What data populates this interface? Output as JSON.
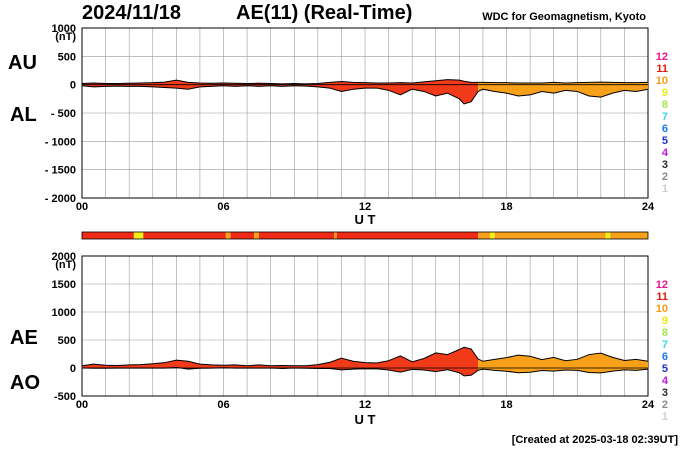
{
  "header": {
    "date": "2024/11/18",
    "title": "AE(11) (Real-Time)",
    "org": "WDC for Geomagnetism, Kyoto"
  },
  "footer": {
    "created": "[Created at 2025-03-18 02:39UT]"
  },
  "side_labels": {
    "au": "AU",
    "al": "AL",
    "ae": "AE",
    "ao": "AO"
  },
  "colors": {
    "fill_red": "#f03a1a",
    "fill_orange": "#f7a11a",
    "bar_red": "#f02a14",
    "bar_orange": "#f7a11a",
    "bar_yellow": "#f2ee18",
    "grid": "#9a9a9a"
  },
  "station_scale": {
    "labels": [
      "12",
      "11",
      "10",
      "9",
      "8",
      "7",
      "6",
      "5",
      "4",
      "3",
      "2",
      "1"
    ],
    "colors": [
      "#e8148c",
      "#e41a10",
      "#f79a16",
      "#e9ec14",
      "#a8e64a",
      "#3cd6e6",
      "#1a78e8",
      "#2030c8",
      "#c416d6",
      "#2b2b2b",
      "#8a8a8a",
      "#cfcfcf"
    ]
  },
  "chart_data": [
    {
      "type": "area",
      "name": "AU / AL",
      "xlabel": "U T",
      "ylabel": "(nT)",
      "xlim": [
        0,
        24
      ],
      "ylim": [
        -2000,
        1000
      ],
      "xticks": [
        "00",
        "06",
        "12",
        "18",
        "24"
      ],
      "yticks": [
        "1000",
        "500",
        "0",
        "- 500",
        "- 1000",
        "- 1500",
        "- 2000"
      ],
      "grid": true,
      "x": [
        0,
        0.5,
        1,
        1.5,
        2,
        2.5,
        3,
        3.5,
        4,
        4.5,
        5,
        5.5,
        6,
        6.5,
        7,
        7.5,
        8,
        8.5,
        9,
        9.5,
        10,
        10.5,
        11,
        11.5,
        12,
        12.5,
        13,
        13.5,
        14,
        14.5,
        15,
        15.5,
        16,
        16.2,
        16.5,
        16.8,
        17,
        17.5,
        18,
        18.5,
        19,
        19.5,
        20,
        20.5,
        21,
        21.5,
        22,
        22.5,
        23,
        23.5,
        24
      ],
      "series": [
        {
          "name": "AU",
          "values": [
            20,
            30,
            20,
            20,
            25,
            30,
            35,
            45,
            80,
            40,
            30,
            25,
            30,
            25,
            20,
            25,
            20,
            15,
            20,
            15,
            20,
            40,
            55,
            40,
            35,
            30,
            30,
            35,
            30,
            50,
            70,
            90,
            80,
            60,
            40,
            40,
            40,
            35,
            35,
            30,
            30,
            30,
            40,
            30,
            35,
            40,
            45,
            40,
            35,
            35,
            40
          ]
        },
        {
          "name": "AL",
          "values": [
            -20,
            -40,
            -30,
            -25,
            -30,
            -30,
            -40,
            -50,
            -60,
            -80,
            -40,
            -30,
            -20,
            -30,
            -20,
            -30,
            -20,
            -30,
            -20,
            -25,
            -40,
            -60,
            -120,
            -80,
            -60,
            -60,
            -100,
            -180,
            -80,
            -120,
            -200,
            -150,
            -250,
            -340,
            -300,
            -120,
            -80,
            -120,
            -150,
            -200,
            -180,
            -120,
            -150,
            -100,
            -120,
            -200,
            -220,
            -150,
            -100,
            -120,
            -80
          ]
        }
      ]
    },
    {
      "type": "area",
      "name": "AE / AO",
      "xlabel": "U T",
      "ylabel": "(nT)",
      "xlim": [
        0,
        24
      ],
      "ylim": [
        -500,
        2000
      ],
      "xticks": [
        "00",
        "06",
        "12",
        "18",
        "24"
      ],
      "yticks": [
        "2000",
        "1500",
        "1000",
        "500",
        "0",
        "-500"
      ],
      "grid": true,
      "x": [
        0,
        0.5,
        1,
        1.5,
        2,
        2.5,
        3,
        3.5,
        4,
        4.5,
        5,
        5.5,
        6,
        6.5,
        7,
        7.5,
        8,
        8.5,
        9,
        9.5,
        10,
        10.5,
        11,
        11.5,
        12,
        12.5,
        13,
        13.5,
        14,
        14.5,
        15,
        15.5,
        16,
        16.2,
        16.5,
        16.8,
        17,
        17.5,
        18,
        18.5,
        19,
        19.5,
        20,
        20.5,
        21,
        21.5,
        22,
        22.5,
        23,
        23.5,
        24
      ],
      "series": [
        {
          "name": "AE",
          "values": [
            40,
            70,
            50,
            45,
            55,
            60,
            75,
            95,
            140,
            120,
            70,
            55,
            50,
            55,
            40,
            55,
            40,
            45,
            40,
            40,
            60,
            100,
            175,
            120,
            95,
            90,
            130,
            215,
            110,
            170,
            270,
            240,
            330,
            370,
            340,
            160,
            120,
            155,
            185,
            230,
            210,
            150,
            190,
            130,
            155,
            240,
            265,
            190,
            135,
            155,
            120
          ]
        },
        {
          "name": "AO",
          "values": [
            0,
            -5,
            -5,
            -3,
            -3,
            0,
            -3,
            -3,
            10,
            -20,
            -5,
            -3,
            5,
            -3,
            0,
            -3,
            0,
            -8,
            0,
            -5,
            -10,
            -10,
            -33,
            -20,
            -13,
            -15,
            -35,
            -73,
            -25,
            -35,
            -65,
            -30,
            -85,
            -140,
            -130,
            -40,
            -20,
            -43,
            -58,
            -85,
            -75,
            -45,
            -55,
            -35,
            -43,
            -80,
            -88,
            -55,
            -33,
            -43,
            -20
          ]
        }
      ]
    },
    {
      "type": "bar",
      "name": "station count bar",
      "segments": [
        {
          "from": 0,
          "to": 2.2,
          "level": "11"
        },
        {
          "from": 2.2,
          "to": 2.6,
          "level": "9"
        },
        {
          "from": 2.6,
          "to": 6.1,
          "level": "11"
        },
        {
          "from": 6.1,
          "to": 6.3,
          "level": "10"
        },
        {
          "from": 6.3,
          "to": 7.3,
          "level": "11"
        },
        {
          "from": 7.3,
          "to": 7.5,
          "level": "10"
        },
        {
          "from": 7.5,
          "to": 10.7,
          "level": "11"
        },
        {
          "from": 10.7,
          "to": 10.8,
          "level": "10"
        },
        {
          "from": 10.8,
          "to": 16.8,
          "level": "11"
        },
        {
          "from": 16.8,
          "to": 17.3,
          "level": "10"
        },
        {
          "from": 17.3,
          "to": 17.5,
          "level": "9"
        },
        {
          "from": 17.5,
          "to": 22.2,
          "level": "10"
        },
        {
          "from": 22.2,
          "to": 22.4,
          "level": "9"
        },
        {
          "from": 22.4,
          "to": 24,
          "level": "10"
        }
      ]
    }
  ]
}
